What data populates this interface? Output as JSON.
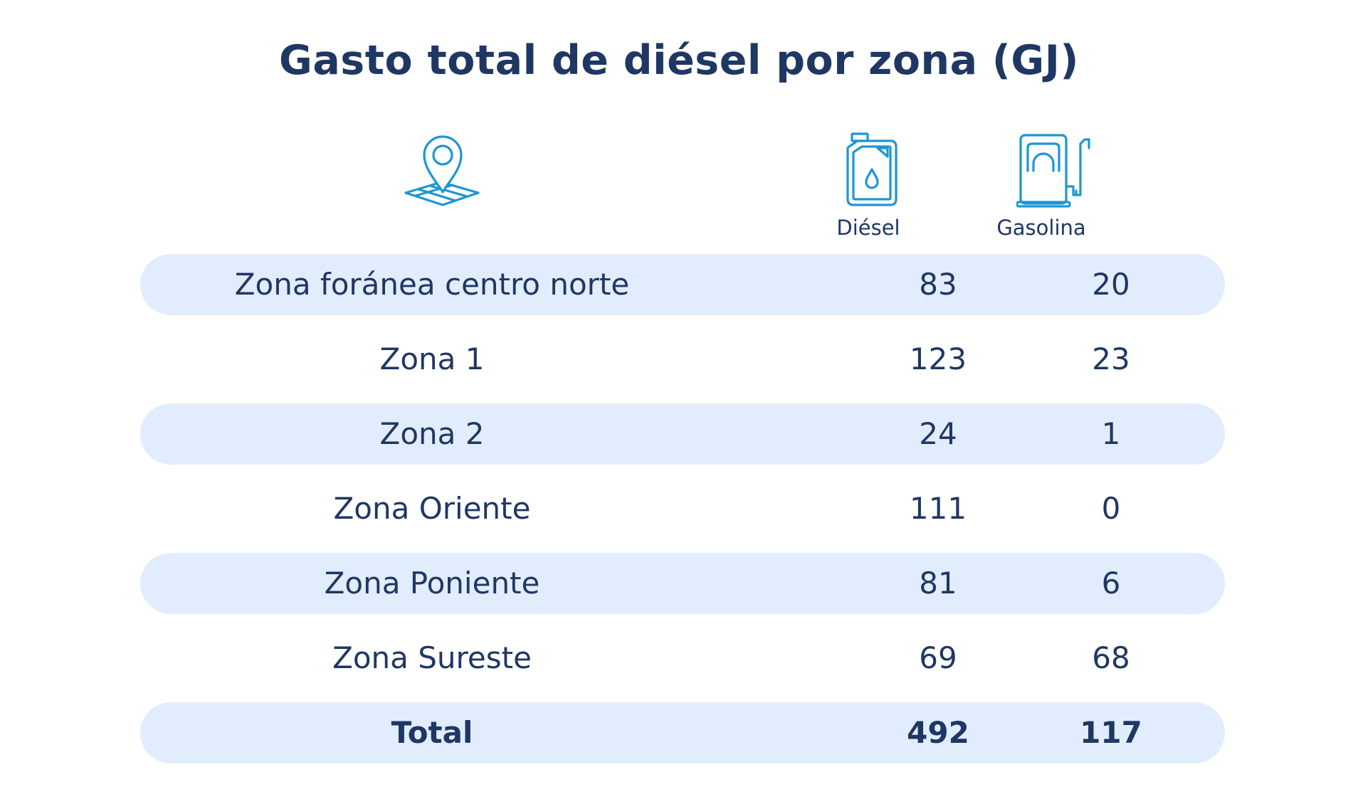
{
  "title": "Gasto total de diésel por zona (GJ)",
  "colors": {
    "text": "#1f3763",
    "icon": "#1d96d2",
    "row_shade": "#e1edfc"
  },
  "icons": {
    "zone": "map-pin-icon",
    "diesel": "fuel-canister-icon",
    "gasoline": "fuel-pump-icon"
  },
  "chart_data": {
    "type": "table",
    "title": "Gasto total de diésel por zona (GJ)",
    "columns": [
      "",
      "Diésel",
      "Gasolina"
    ],
    "rows": [
      {
        "zone": "Zona foránea centro norte",
        "diesel": "83",
        "gasoline": "20"
      },
      {
        "zone": "Zona 1",
        "diesel": "123",
        "gasoline": "23"
      },
      {
        "zone": "Zona 2",
        "diesel": "24",
        "gasoline": "1"
      },
      {
        "zone": "Zona Oriente",
        "diesel": "111",
        "gasoline": "0"
      },
      {
        "zone": "Zona Poniente",
        "diesel": "81",
        "gasoline": "6"
      },
      {
        "zone": "Zona Sureste",
        "diesel": "69",
        "gasoline": "68"
      }
    ],
    "total": {
      "zone": "Total",
      "diesel": "492",
      "gasoline": "117"
    }
  }
}
